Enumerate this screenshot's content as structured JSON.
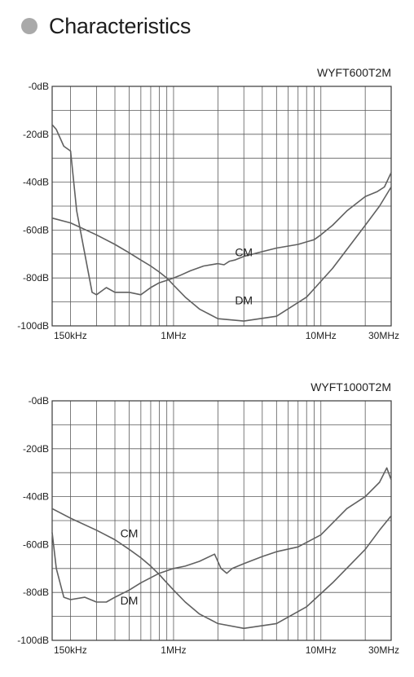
{
  "page": {
    "heading": "Characteristics"
  },
  "chart_data": [
    {
      "type": "line",
      "title": "WYFT600T2M",
      "x_scale": "log",
      "xlim": [
        0.15,
        30
      ],
      "ylim": [
        -100,
        0
      ],
      "x_ticks": [
        {
          "value": 0.15,
          "label": "150kHz"
        },
        {
          "value": 1,
          "label": "1MHz"
        },
        {
          "value": 10,
          "label": "10MHz"
        },
        {
          "value": 30,
          "label": "30MHz"
        }
      ],
      "y_ticks": [
        {
          "value": 0,
          "label": "-0dB"
        },
        {
          "value": -20,
          "label": "-20dB"
        },
        {
          "value": -40,
          "label": "-40dB"
        },
        {
          "value": -60,
          "label": "-60dB"
        },
        {
          "value": -80,
          "label": "-80dB"
        },
        {
          "value": -100,
          "label": "-100dB"
        }
      ],
      "grid": true,
      "series": [
        {
          "name": "CM",
          "color": "#606060",
          "x": [
            0.15,
            0.2,
            0.3,
            0.4,
            0.5,
            0.6,
            0.7,
            0.8,
            0.9,
            1.0,
            1.2,
            1.5,
            2.0,
            3.0,
            5.0,
            8.0,
            12.0,
            20.0,
            25.0,
            30.0
          ],
          "y": [
            -55,
            -57,
            -62,
            -66,
            -69.5,
            -72.5,
            -75,
            -77.5,
            -80,
            -83,
            -88,
            -93,
            -97,
            -98,
            -96,
            -88,
            -76,
            -58,
            -50,
            -42
          ]
        },
        {
          "name": "DM",
          "color": "#606060",
          "x": [
            0.15,
            0.16,
            0.18,
            0.2,
            0.22,
            0.25,
            0.28,
            0.3,
            0.35,
            0.4,
            0.5,
            0.6,
            0.7,
            0.8,
            0.9,
            1.0,
            1.1,
            1.3,
            1.6,
            2.0,
            2.2,
            2.4,
            2.6,
            3.0,
            4.0,
            5.0,
            7.0,
            9.0,
            10.0,
            12.0,
            15.0,
            20.0,
            24.0,
            27.0,
            30.0
          ],
          "y": [
            -16,
            -18,
            -25,
            -27,
            -52,
            -70,
            -86,
            -87,
            -84,
            -86,
            -86,
            -87,
            -84,
            -82,
            -81,
            -80,
            -79,
            -77,
            -75,
            -74,
            -74.5,
            -73,
            -72.5,
            -71,
            -69,
            -67.5,
            -66,
            -64,
            -62,
            -58,
            -52,
            -46,
            -44,
            -42,
            -36
          ]
        }
      ],
      "annotations": [
        {
          "text": "CM",
          "x": 3.0,
          "y": -71
        },
        {
          "text": "DM",
          "x": 3.0,
          "y": -91
        }
      ]
    },
    {
      "type": "line",
      "title": "WYFT1000T2M",
      "x_scale": "log",
      "xlim": [
        0.15,
        30
      ],
      "ylim": [
        -100,
        0
      ],
      "x_ticks": [
        {
          "value": 0.15,
          "label": "150kHz"
        },
        {
          "value": 1,
          "label": "1MHz"
        },
        {
          "value": 10,
          "label": "10MHz"
        },
        {
          "value": 30,
          "label": "30MHz"
        }
      ],
      "y_ticks": [
        {
          "value": 0,
          "label": "-0dB"
        },
        {
          "value": -20,
          "label": "-20dB"
        },
        {
          "value": -40,
          "label": "-40dB"
        },
        {
          "value": -60,
          "label": "-60dB"
        },
        {
          "value": -80,
          "label": "-80dB"
        },
        {
          "value": -100,
          "label": "-100dB"
        }
      ],
      "grid": true,
      "series": [
        {
          "name": "CM",
          "color": "#606060",
          "x": [
            0.15,
            0.2,
            0.3,
            0.4,
            0.5,
            0.6,
            0.7,
            0.8,
            0.9,
            1.0,
            1.2,
            1.5,
            2.0,
            3.0,
            5.0,
            8.0,
            12.0,
            20.0,
            25.0,
            30.0
          ],
          "y": [
            -45,
            -49,
            -54,
            -58,
            -62,
            -65.5,
            -69,
            -72.5,
            -76,
            -79,
            -84,
            -89,
            -93,
            -95,
            -93,
            -86,
            -76,
            -62,
            -54,
            -48
          ]
        },
        {
          "name": "DM",
          "color": "#606060",
          "x": [
            0.15,
            0.16,
            0.18,
            0.2,
            0.25,
            0.3,
            0.35,
            0.4,
            0.5,
            0.6,
            0.8,
            1.0,
            1.2,
            1.5,
            1.9,
            2.1,
            2.3,
            2.5,
            3.0,
            4.0,
            5.0,
            7.0,
            10.0,
            15.0,
            20.0,
            25.0,
            28.0,
            30.0
          ],
          "y": [
            -55,
            -70,
            -82,
            -83,
            -82,
            -84,
            -84,
            -82,
            -79,
            -76,
            -72,
            -70,
            -69,
            -67,
            -64,
            -70,
            -72,
            -70,
            -68,
            -65,
            -63,
            -61,
            -56,
            -45,
            -40,
            -34,
            -28,
            -33
          ]
        }
      ],
      "annotations": [
        {
          "text": "CM",
          "x": 0.5,
          "y": -57
        },
        {
          "text": "DM",
          "x": 0.5,
          "y": -85
        }
      ]
    }
  ]
}
